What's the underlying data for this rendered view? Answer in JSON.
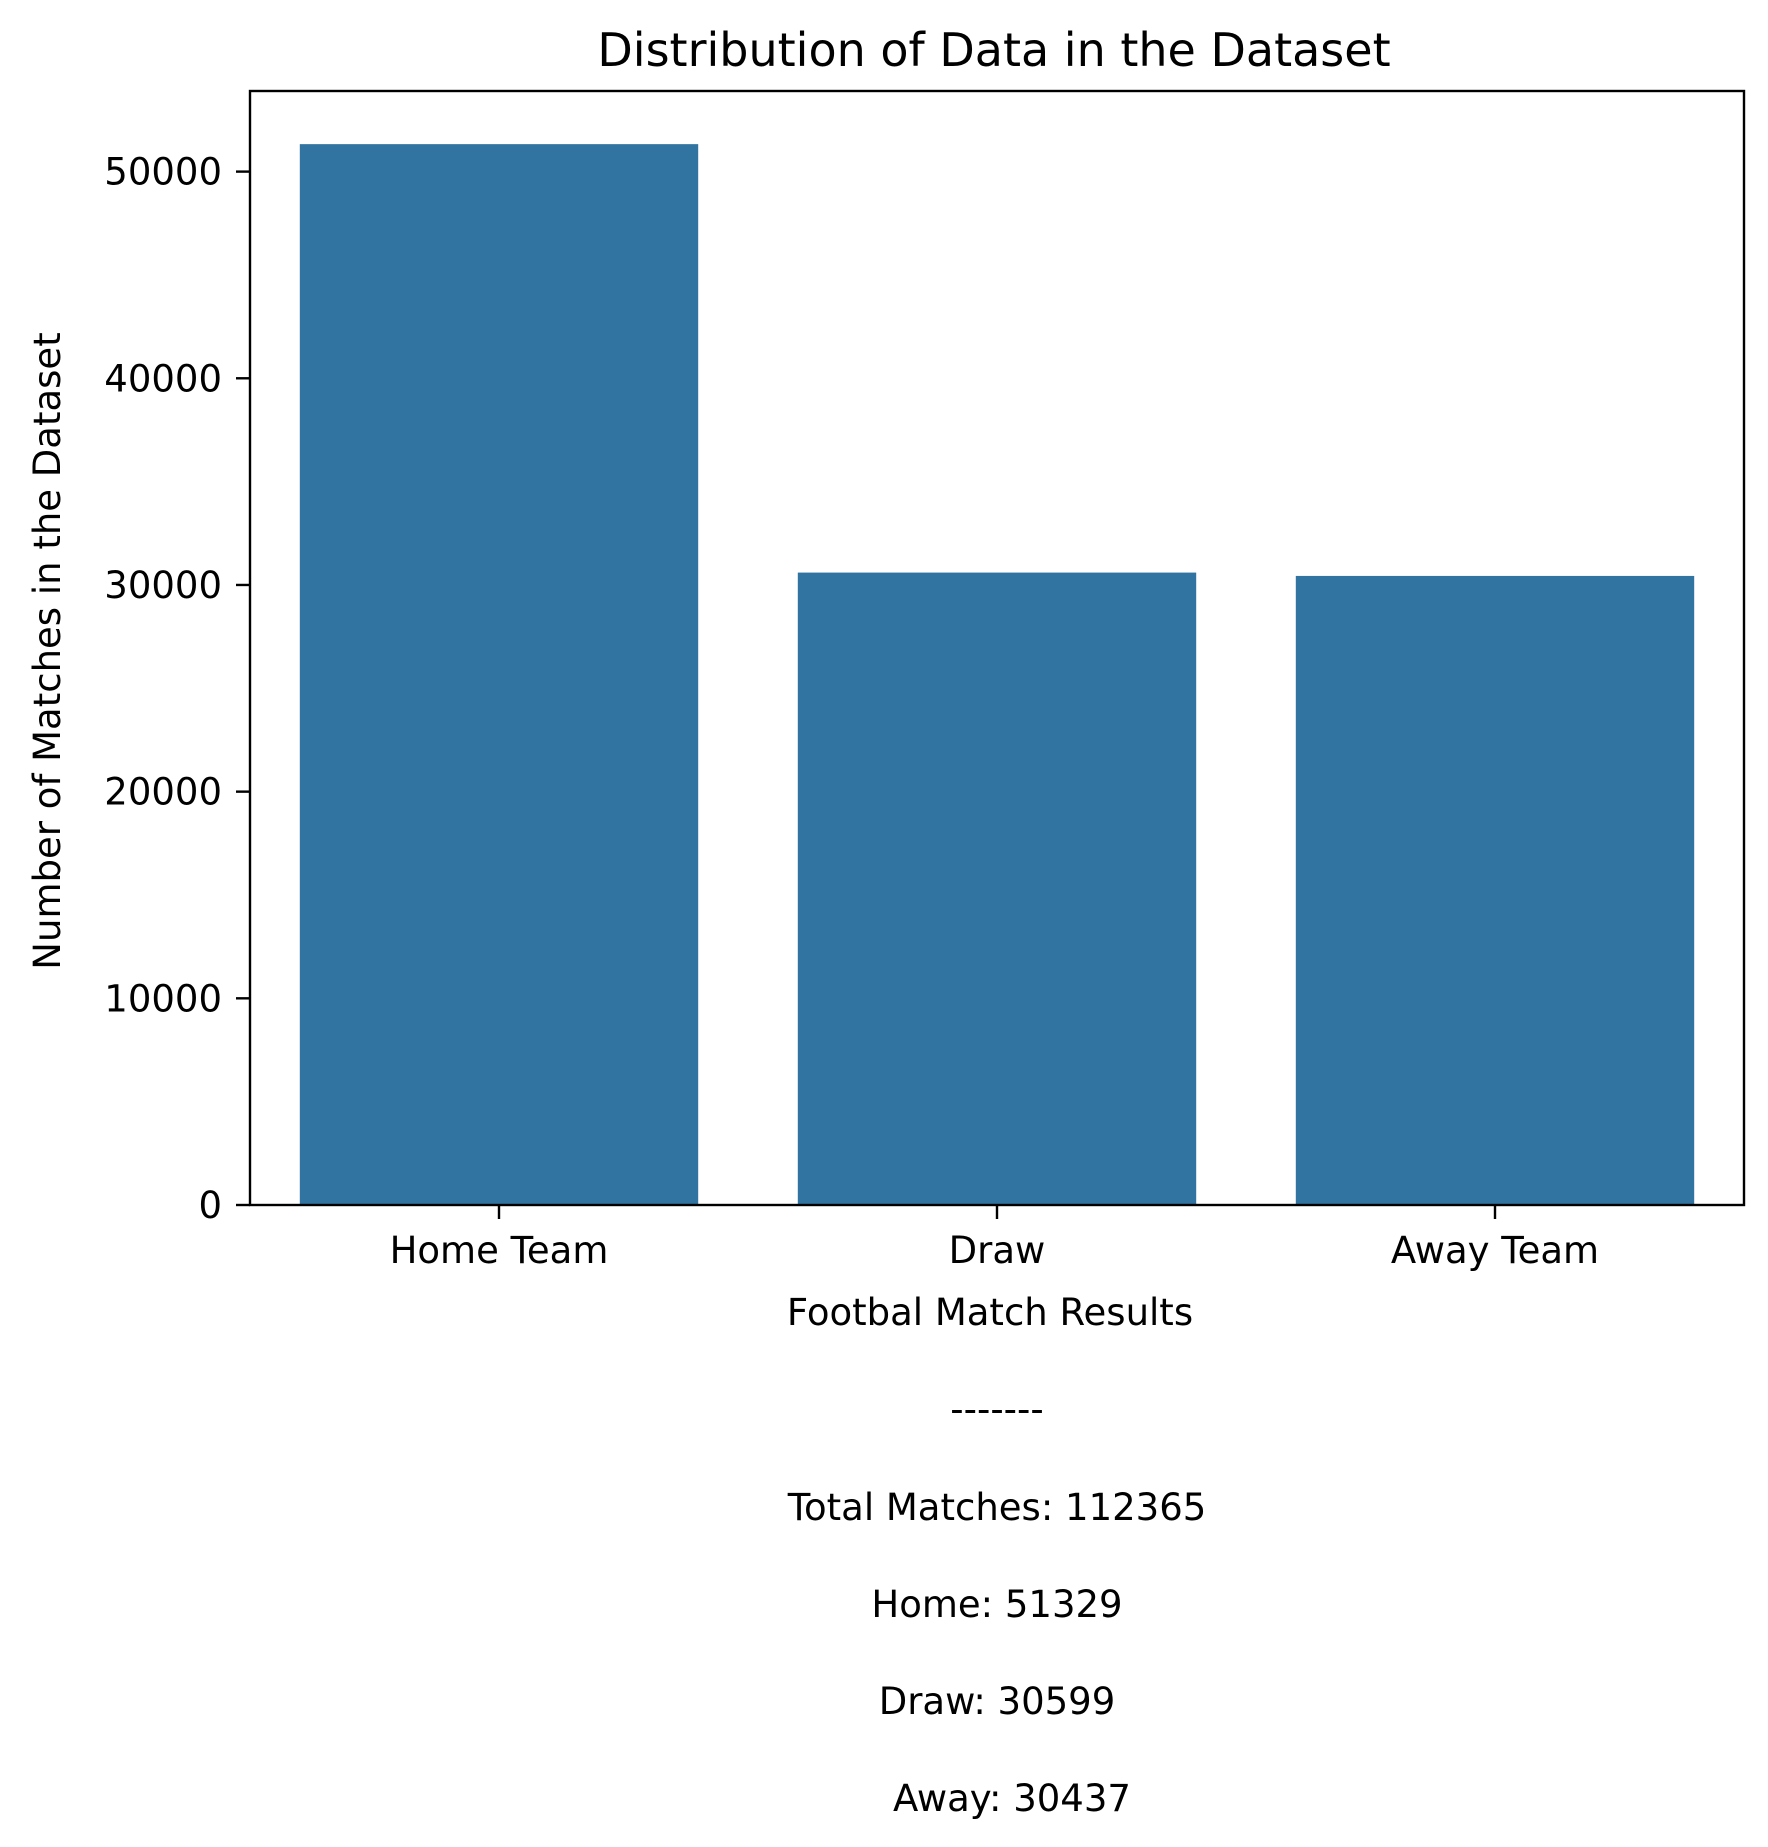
{
  "chart_data": {
    "type": "bar",
    "title": "Distribution of Data in the Dataset",
    "xlabel": "Footbal Match Results",
    "ylabel": "Number of Matches in the Dataset",
    "categories": [
      "Home Team",
      "Draw",
      "Away Team"
    ],
    "values": [
      51329,
      30599,
      30437
    ],
    "ylim": [
      0,
      53900
    ],
    "yticks": [
      0,
      10000,
      20000,
      30000,
      40000,
      50000
    ],
    "grid": false,
    "bar_color": "#3274a1",
    "notes": [
      "-------",
      "Total Matches: 112365",
      "Home: 51329",
      "Draw: 30599",
      "Away: 30437"
    ]
  }
}
